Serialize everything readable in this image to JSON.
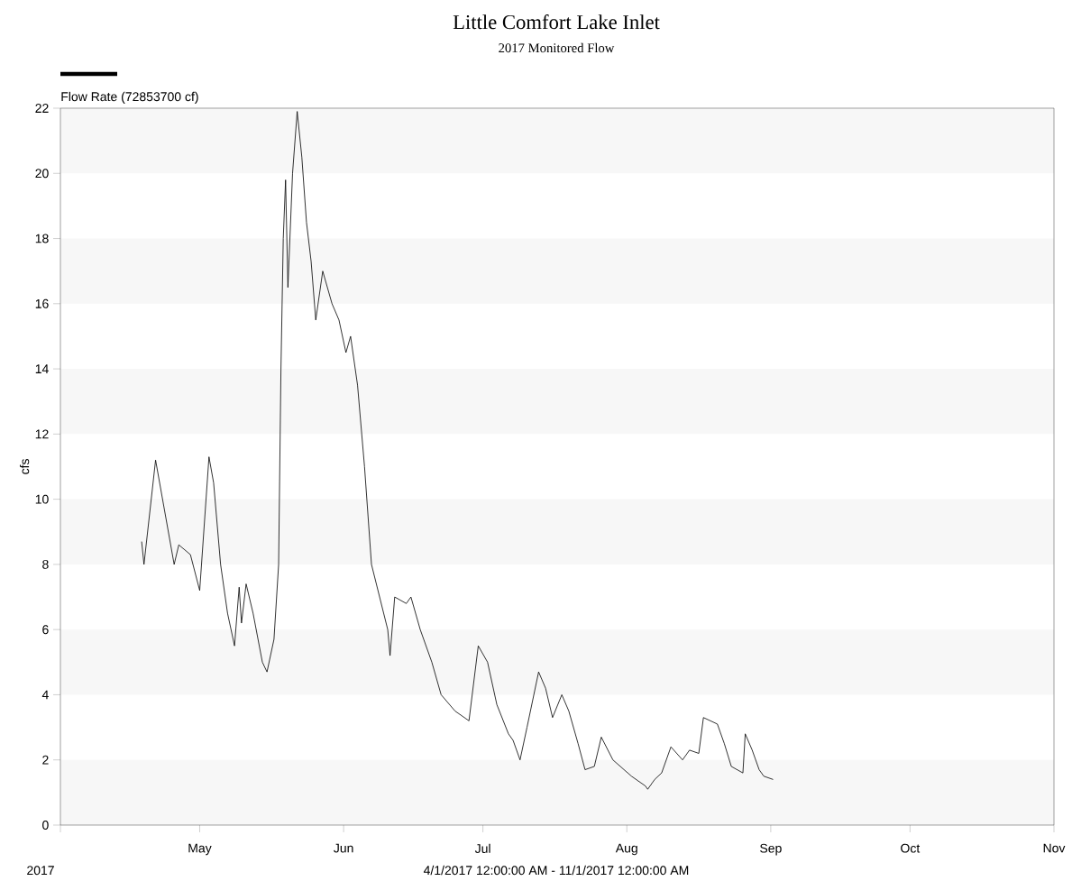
{
  "chart_data": {
    "type": "line",
    "title": "Little Comfort Lake Inlet",
    "subtitle": "2017 Monitored Flow",
    "ylabel": "cfs",
    "annotations": [
      "2017",
      "4/1/2017 12:00:00 AM - 11/1/2017 12:00:00 AM"
    ],
    "xlim": [
      "2017-04-01",
      "2017-11-01"
    ],
    "xticks": [
      {
        "value": "2017-04-01",
        "label": null
      },
      {
        "value": "2017-05-01",
        "label": "May"
      },
      {
        "value": "2017-06-01",
        "label": "Jun"
      },
      {
        "value": "2017-07-01",
        "label": "Jul"
      },
      {
        "value": "2017-08-01",
        "label": "Aug"
      },
      {
        "value": "2017-09-01",
        "label": "Sep"
      },
      {
        "value": "2017-10-01",
        "label": "Oct"
      },
      {
        "value": "2017-11-01",
        "label": "Nov"
      }
    ],
    "ylim": [
      0,
      22
    ],
    "yticks": [
      0,
      2,
      4,
      6,
      8,
      10,
      12,
      14,
      16,
      18,
      20,
      22
    ],
    "grid": false,
    "legend": "top left",
    "marker": "none",
    "line_style": "solid",
    "bands": [
      {
        "axis": "y",
        "from": 0,
        "to": 2,
        "color": "#f7f7f7"
      },
      {
        "axis": "y",
        "from": 4,
        "to": 6,
        "color": "#f7f7f7"
      },
      {
        "axis": "y",
        "from": 8,
        "to": 10,
        "color": "#f7f7f7"
      },
      {
        "axis": "y",
        "from": 12,
        "to": 14,
        "color": "#f7f7f7"
      },
      {
        "axis": "y",
        "from": 16,
        "to": 18,
        "color": "#f7f7f7"
      },
      {
        "axis": "y",
        "from": 20,
        "to": 22,
        "color": "#f7f7f7"
      }
    ],
    "x": [
      "2017-04-18T12:00",
      "2017-04-19T00:00",
      "2017-04-21T12:00",
      "2017-04-25T12:00",
      "2017-04-26T12:00",
      "2017-04-29T00:00",
      "2017-05-01T00:00",
      "2017-05-03T00:00",
      "2017-05-04T00:00",
      "2017-05-05T12:00",
      "2017-05-07T00:00",
      "2017-05-08T12:00",
      "2017-05-09T12:00",
      "2017-05-10T00:00",
      "2017-05-11T00:00",
      "2017-05-12T12:00",
      "2017-05-14T12:00",
      "2017-05-15T12:00",
      "2017-05-17T00:00",
      "2017-05-18T00:00",
      "2017-05-18T12:00",
      "2017-05-19T00:00",
      "2017-05-19T12:00",
      "2017-05-20T00:00",
      "2017-05-21T00:00",
      "2017-05-22T00:00",
      "2017-05-23T00:00",
      "2017-05-24T00:00",
      "2017-05-25T00:00",
      "2017-05-26T00:00",
      "2017-05-27T12:00",
      "2017-05-29T12:00",
      "2017-05-31T00:00",
      "2017-06-01T12:00",
      "2017-06-02T12:00",
      "2017-06-04T00:00",
      "2017-06-05T12:00",
      "2017-06-07T00:00",
      "2017-06-10T12:00",
      "2017-06-11T00:00",
      "2017-06-12T00:00",
      "2017-06-14T12:00",
      "2017-06-15T12:00",
      "2017-06-17T12:00",
      "2017-06-20T00:00",
      "2017-06-21T00:00",
      "2017-06-22T00:00",
      "2017-06-25T00:00",
      "2017-06-28T00:00",
      "2017-06-30T00:00",
      "2017-07-02T00:00",
      "2017-07-04T00:00",
      "2017-07-06T12:00",
      "2017-07-07T12:00",
      "2017-07-09T00:00",
      "2017-07-10T12:00",
      "2017-07-13T00:00",
      "2017-07-14T12:00",
      "2017-07-16T00:00",
      "2017-07-18T00:00",
      "2017-07-19T12:00",
      "2017-07-21T12:00",
      "2017-07-23T00:00",
      "2017-07-25T00:00",
      "2017-07-26T12:00",
      "2017-07-29T00:00",
      "2017-08-02T00:00",
      "2017-08-05T00:00",
      "2017-08-05T12:00",
      "2017-08-07T00:00",
      "2017-08-08T12:00",
      "2017-08-10T12:00",
      "2017-08-13T00:00",
      "2017-08-14T12:00",
      "2017-08-16T12:00",
      "2017-08-17T12:00",
      "2017-08-20T12:00",
      "2017-08-22T00:00",
      "2017-08-23T12:00",
      "2017-08-26T00:00",
      "2017-08-26T12:00",
      "2017-08-28T00:00",
      "2017-08-29T12:00",
      "2017-08-30T12:00",
      "2017-09-01T12:00"
    ],
    "series": [
      {
        "name": "Flow Rate (72853700 cf)",
        "color": "#000000",
        "values": [
          8.7,
          8.0,
          11.2,
          8.0,
          8.6,
          8.3,
          7.2,
          11.3,
          10.5,
          8.0,
          6.5,
          5.5,
          7.3,
          6.2,
          7.4,
          6.5,
          5.0,
          4.7,
          5.7,
          8.0,
          14.0,
          18.0,
          19.8,
          16.5,
          20.0,
          21.9,
          20.5,
          18.5,
          17.3,
          15.5,
          17.0,
          16.0,
          15.5,
          14.5,
          15.0,
          13.5,
          11.0,
          8.0,
          6.0,
          5.2,
          7.0,
          6.8,
          7.0,
          6.0,
          5.0,
          4.5,
          4.0,
          3.5,
          3.2,
          5.5,
          5.0,
          3.7,
          2.8,
          2.6,
          2.0,
          3.0,
          4.7,
          4.2,
          3.3,
          4.0,
          3.5,
          2.5,
          1.7,
          1.8,
          2.7,
          2.0,
          1.5,
          1.2,
          1.1,
          1.4,
          1.6,
          2.4,
          2.0,
          2.3,
          2.2,
          3.3,
          3.1,
          2.5,
          1.8,
          1.6,
          2.8,
          2.3,
          1.7,
          1.5,
          1.4
        ]
      }
    ]
  }
}
